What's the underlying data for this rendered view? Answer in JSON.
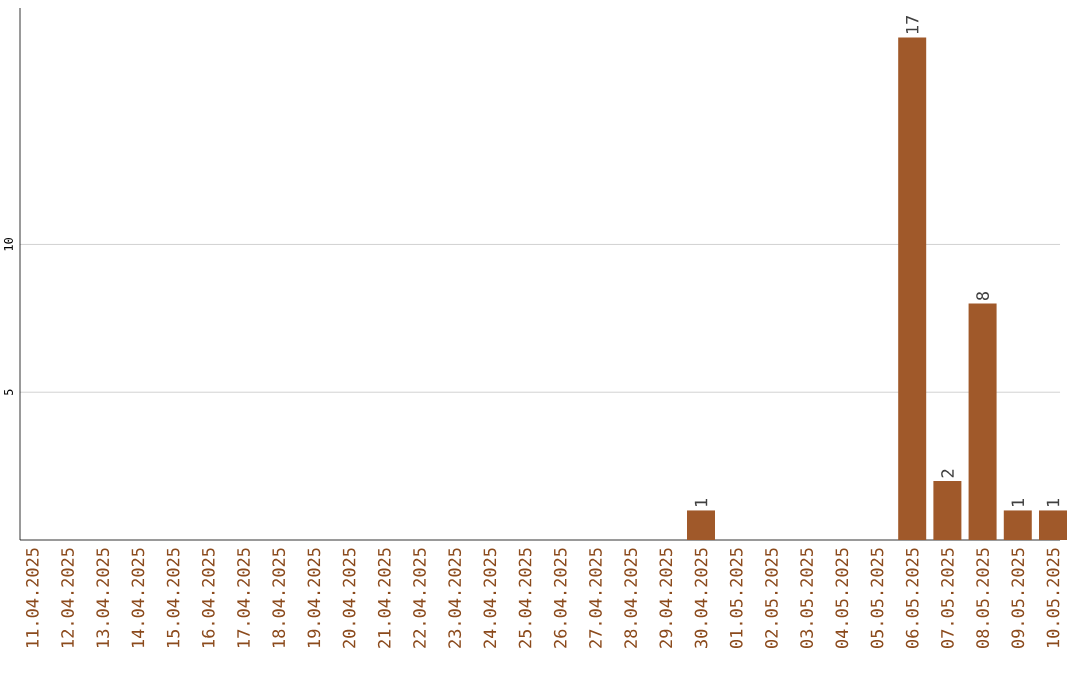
{
  "chart_data": {
    "type": "bar",
    "categories": [
      "11.04.2025",
      "12.04.2025",
      "13.04.2025",
      "14.04.2025",
      "15.04.2025",
      "16.04.2025",
      "17.04.2025",
      "18.04.2025",
      "19.04.2025",
      "20.04.2025",
      "21.04.2025",
      "22.04.2025",
      "23.04.2025",
      "24.04.2025",
      "25.04.2025",
      "26.04.2025",
      "27.04.2025",
      "28.04.2025",
      "29.04.2025",
      "30.04.2025",
      "01.05.2025",
      "02.05.2025",
      "03.05.2025",
      "04.05.2025",
      "05.05.2025",
      "06.05.2025",
      "07.05.2025",
      "08.05.2025",
      "09.05.2025",
      "10.05.2025"
    ],
    "values": [
      0,
      0,
      0,
      0,
      0,
      0,
      0,
      0,
      0,
      0,
      0,
      0,
      0,
      0,
      0,
      0,
      0,
      0,
      0,
      1,
      0,
      0,
      0,
      0,
      0,
      17,
      2,
      8,
      1,
      1
    ],
    "value_labels": [
      null,
      null,
      null,
      null,
      null,
      null,
      null,
      null,
      null,
      null,
      null,
      null,
      null,
      null,
      null,
      null,
      null,
      null,
      null,
      "1",
      null,
      null,
      null,
      null,
      null,
      "17",
      "2",
      "8",
      "1",
      "1"
    ],
    "color": "#a0592a",
    "ylim": [
      0,
      18
    ],
    "yticks": [
      5,
      10
    ],
    "grid": "y"
  }
}
